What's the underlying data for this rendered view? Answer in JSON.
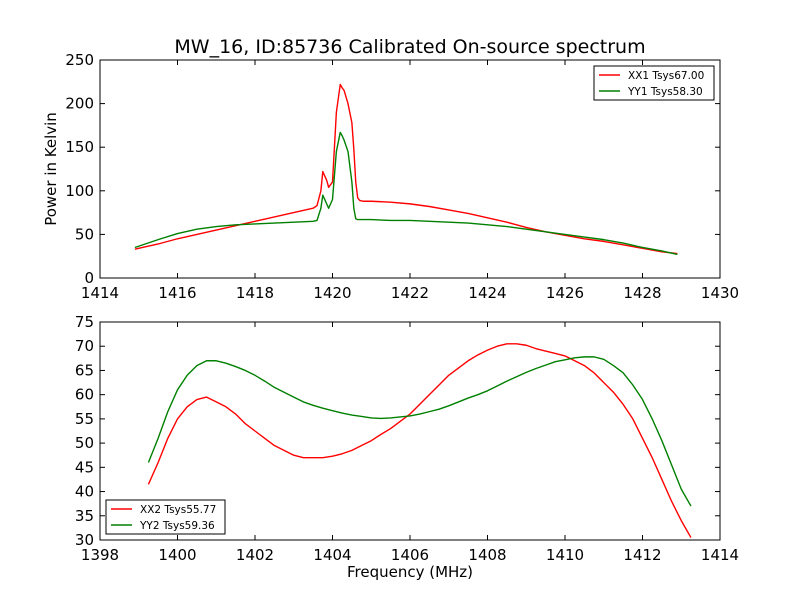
{
  "chart_data": [
    {
      "type": "line",
      "title": "MW_16, ID:85736 Calibrated On-source spectrum",
      "xlabel": "",
      "ylabel": "Power in Kelvin",
      "xlim": [
        1414,
        1430
      ],
      "ylim": [
        0,
        250
      ],
      "xticks": [
        1414,
        1416,
        1418,
        1420,
        1422,
        1424,
        1426,
        1428,
        1430
      ],
      "yticks": [
        0,
        50,
        100,
        150,
        200,
        250
      ],
      "legend_position": "top-right",
      "grid": false,
      "series": [
        {
          "name": "XX1 Tsys67.00",
          "color": "#ff0000",
          "x": [
            1414.9,
            1415.5,
            1416,
            1416.5,
            1417,
            1417.5,
            1418,
            1418.5,
            1419,
            1419.5,
            1419.6,
            1419.7,
            1419.75,
            1419.85,
            1419.9,
            1420.0,
            1420.1,
            1420.2,
            1420.25,
            1420.3,
            1420.4,
            1420.5,
            1420.55,
            1420.6,
            1420.65,
            1420.7,
            1420.8,
            1421,
            1421.5,
            1422,
            1422.5,
            1423,
            1423.5,
            1424,
            1424.5,
            1425,
            1425.5,
            1426,
            1426.5,
            1427,
            1427.5,
            1428,
            1428.5,
            1428.9
          ],
          "y": [
            33,
            39,
            45,
            50,
            55,
            60,
            65,
            70,
            75,
            80,
            83,
            100,
            122,
            112,
            104,
            110,
            190,
            222,
            218,
            215,
            200,
            178,
            148,
            110,
            92,
            89,
            88,
            88,
            87,
            85,
            82,
            78,
            74,
            69,
            64,
            58,
            53,
            49,
            45,
            42,
            38,
            34,
            30,
            28
          ]
        },
        {
          "name": "YY1 Tsys58.30",
          "color": "#008000",
          "x": [
            1414.9,
            1415.5,
            1416,
            1416.5,
            1417,
            1417.5,
            1418,
            1418.5,
            1419,
            1419.5,
            1419.6,
            1419.7,
            1419.75,
            1419.85,
            1419.9,
            1420.0,
            1420.1,
            1420.2,
            1420.25,
            1420.3,
            1420.4,
            1420.5,
            1420.55,
            1420.6,
            1420.65,
            1420.7,
            1420.8,
            1421,
            1421.5,
            1422,
            1422.5,
            1423,
            1423.5,
            1424,
            1424.5,
            1425,
            1425.5,
            1426,
            1426.5,
            1427,
            1427.5,
            1428,
            1428.5,
            1428.9
          ],
          "y": [
            35,
            44,
            51,
            56,
            59,
            61,
            62,
            63,
            64,
            65,
            66,
            80,
            95,
            85,
            80,
            90,
            145,
            167,
            163,
            158,
            145,
            110,
            80,
            68,
            67,
            67,
            67,
            67,
            66,
            66,
            65,
            64,
            63,
            61,
            59,
            56,
            53,
            50,
            47,
            44,
            40,
            35,
            31,
            27
          ]
        }
      ]
    },
    {
      "type": "line",
      "title": "",
      "xlabel": "Frequency (MHz)",
      "ylabel": "",
      "xlim": [
        1398,
        1414
      ],
      "ylim": [
        30,
        75
      ],
      "xticks": [
        1398,
        1400,
        1402,
        1404,
        1406,
        1408,
        1410,
        1412,
        1414
      ],
      "yticks": [
        30,
        35,
        40,
        45,
        50,
        55,
        60,
        65,
        70,
        75
      ],
      "legend_position": "bottom-left",
      "grid": false,
      "series": [
        {
          "name": "XX2 Tsys55.77",
          "color": "#ff0000",
          "x": [
            1399.25,
            1399.5,
            1399.75,
            1400,
            1400.25,
            1400.5,
            1400.75,
            1401,
            1401.25,
            1401.5,
            1401.75,
            1402,
            1402.25,
            1402.5,
            1402.75,
            1403,
            1403.25,
            1403.5,
            1403.75,
            1404,
            1404.25,
            1404.5,
            1404.75,
            1405,
            1405.25,
            1405.5,
            1405.75,
            1406,
            1406.25,
            1406.5,
            1406.75,
            1407,
            1407.25,
            1407.5,
            1407.75,
            1408,
            1408.25,
            1408.5,
            1408.75,
            1409,
            1409.25,
            1409.5,
            1409.75,
            1410,
            1410.25,
            1410.5,
            1410.75,
            1411,
            1411.25,
            1411.5,
            1411.75,
            1412,
            1412.25,
            1412.5,
            1412.75,
            1413,
            1413.25
          ],
          "y": [
            41.5,
            46,
            51,
            55,
            57.5,
            59,
            59.5,
            58.5,
            57.5,
            56,
            54,
            52.5,
            51,
            49.5,
            48.5,
            47.5,
            47,
            47,
            47,
            47.3,
            47.8,
            48.5,
            49.5,
            50.5,
            51.8,
            53,
            54.5,
            56,
            58,
            60,
            62,
            64,
            65.5,
            67,
            68.2,
            69.2,
            70,
            70.5,
            70.5,
            70.2,
            69.5,
            69,
            68.5,
            68,
            67,
            66,
            64.5,
            62.5,
            60.5,
            58,
            55,
            51,
            47,
            42.5,
            38,
            34,
            30.5
          ]
        },
        {
          "name": "YY2 Tsys59.36",
          "color": "#008000",
          "x": [
            1399.25,
            1399.5,
            1399.75,
            1400,
            1400.25,
            1400.5,
            1400.75,
            1401,
            1401.25,
            1401.5,
            1401.75,
            1402,
            1402.25,
            1402.5,
            1402.75,
            1403,
            1403.25,
            1403.5,
            1403.75,
            1404,
            1404.25,
            1404.5,
            1404.75,
            1405,
            1405.25,
            1405.5,
            1405.75,
            1406,
            1406.25,
            1406.5,
            1406.75,
            1407,
            1407.25,
            1407.5,
            1407.75,
            1408,
            1408.25,
            1408.5,
            1408.75,
            1409,
            1409.25,
            1409.5,
            1409.75,
            1410,
            1410.25,
            1410.5,
            1410.75,
            1411,
            1411.25,
            1411.5,
            1411.75,
            1412,
            1412.25,
            1412.5,
            1412.75,
            1413,
            1413.25
          ],
          "y": [
            46,
            51,
            56.5,
            61,
            64,
            66,
            67,
            67,
            66.5,
            65.8,
            65,
            64,
            62.8,
            61.5,
            60.5,
            59.5,
            58.5,
            57.8,
            57.2,
            56.7,
            56.2,
            55.8,
            55.5,
            55.2,
            55.1,
            55.2,
            55.4,
            55.6,
            56,
            56.5,
            57,
            57.7,
            58.5,
            59.3,
            60,
            60.8,
            61.8,
            62.8,
            63.7,
            64.6,
            65.4,
            66.1,
            66.8,
            67.2,
            67.6,
            67.8,
            67.8,
            67.3,
            66,
            64.5,
            62,
            59,
            55,
            50.5,
            45.5,
            40.5,
            37
          ]
        }
      ]
    }
  ]
}
